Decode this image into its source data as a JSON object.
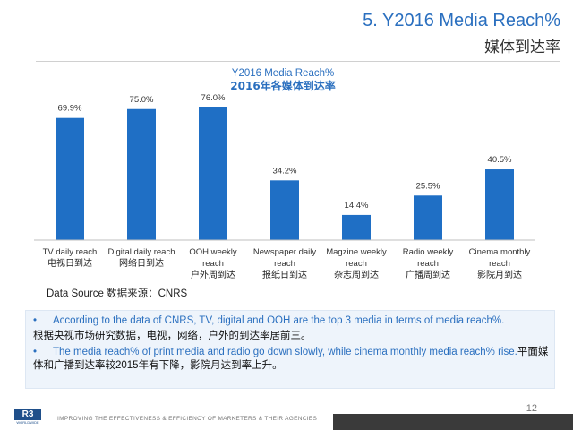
{
  "header": {
    "title_en": "5. Y2016 Media Reach%",
    "title_cn": "媒体到达率"
  },
  "chart_data": {
    "type": "bar",
    "title": "Y2016 Media Reach%",
    "subtitle": "2016年各媒体到达率",
    "categories": [
      {
        "en": [
          "TV daily reach"
        ],
        "cn": "电视日到达"
      },
      {
        "en": [
          "Digital daily reach"
        ],
        "cn": "网络日到达"
      },
      {
        "en": [
          "OOH weekly",
          "reach"
        ],
        "cn": "户外周到达"
      },
      {
        "en": [
          "Newspaper daily",
          "reach"
        ],
        "cn": "报纸日到达"
      },
      {
        "en": [
          "Magzine weekly",
          "reach"
        ],
        "cn": "杂志周到达"
      },
      {
        "en": [
          "Radio weekly",
          "reach"
        ],
        "cn": "广播周到达"
      },
      {
        "en": [
          "Cinema monthly",
          "reach"
        ],
        "cn": "影院月到达"
      }
    ],
    "values": [
      69.9,
      75.0,
      76.0,
      34.2,
      14.4,
      25.5,
      40.5
    ],
    "value_labels": [
      "69.9%",
      "75.0%",
      "76.0%",
      "34.2%",
      "14.4%",
      "25.5%",
      "40.5%"
    ],
    "ylim": [
      0,
      80
    ],
    "bar_color": "#1f6fc5",
    "grid": false
  },
  "source": "Data Source 数据来源：CNRS",
  "notes": [
    {
      "bullet": "•",
      "en": "According to the data of CNRS, TV, digital and OOH are the top 3 media in terms of media reach%.",
      "cn": "根据央视市场研究数据，电视，网络，户外的到达率居前三。"
    },
    {
      "bullet": "•",
      "en": "The media reach% of print media and radio go down slowly, while cinema monthly media reach% rise.",
      "cn": "平面媒体和广播到达率较2015年有下降，影院月达到率上升。"
    }
  ],
  "footer": {
    "page_number": "12",
    "tagline": "IMPROVING THE EFFECTIVENESS & EFFICIENCY OF MARKETERS & THEIR AGENCIES",
    "logo_text": "R3",
    "logo_sub": "WORLDWIDE"
  }
}
